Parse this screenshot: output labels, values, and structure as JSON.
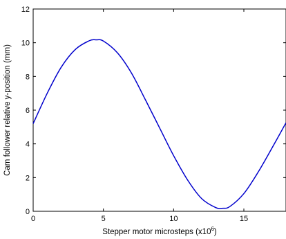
{
  "chart_data": {
    "type": "line",
    "title": "",
    "xlabel": "Stepper motor microsteps (x10",
    "xlabel_exponent": "6",
    "xlabel_suffix": ")",
    "ylabel": "Cam follower relative y-position (mm)",
    "xlim": [
      0,
      18
    ],
    "ylim": [
      0,
      12
    ],
    "xticks": [
      "0",
      "5",
      "10",
      "15"
    ],
    "yticks": [
      "0",
      "2",
      "4",
      "6",
      "8",
      "10",
      "12"
    ],
    "xtick_values": [
      0,
      5,
      10,
      15
    ],
    "ytick_values": [
      0,
      2,
      4,
      6,
      8,
      10,
      12
    ],
    "grid": false,
    "legend": "none",
    "series": [
      {
        "color": "#0000cc",
        "x": [
          0,
          1,
          2,
          3,
          4,
          4.5,
          5,
          6,
          7,
          8,
          9,
          10,
          11,
          12,
          13,
          13.5,
          14,
          15,
          16,
          17,
          18
        ],
        "y": [
          5.2,
          7.0,
          8.55,
          9.6,
          10.12,
          10.17,
          10.1,
          9.4,
          8.2,
          6.6,
          4.95,
          3.3,
          1.85,
          0.75,
          0.22,
          0.18,
          0.28,
          1.05,
          2.3,
          3.75,
          5.25
        ]
      }
    ]
  }
}
